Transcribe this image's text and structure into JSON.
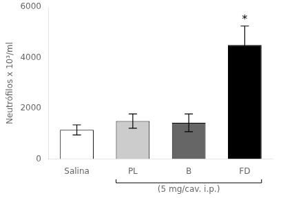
{
  "chart_data": {
    "type": "bar",
    "categories": [
      "Salina",
      "PL",
      "B",
      "FD"
    ],
    "values": [
      1150,
      1500,
      1430,
      4500
    ],
    "errors": [
      200,
      280,
      350,
      750
    ],
    "colors": [
      "#ffffff",
      "#cccccc",
      "#666666",
      "#000000"
    ],
    "ylabel": "Neutrófilos x 10³/ml",
    "ylim": [
      0,
      6000
    ],
    "yticks": [
      0,
      2000,
      4000,
      6000
    ],
    "grid": false,
    "annotations": [
      {
        "text": "*",
        "category": "FD"
      }
    ],
    "group_label": {
      "text": "(5 mg/cav. i.p.)",
      "categories": [
        "PL",
        "B",
        "FD"
      ]
    }
  }
}
